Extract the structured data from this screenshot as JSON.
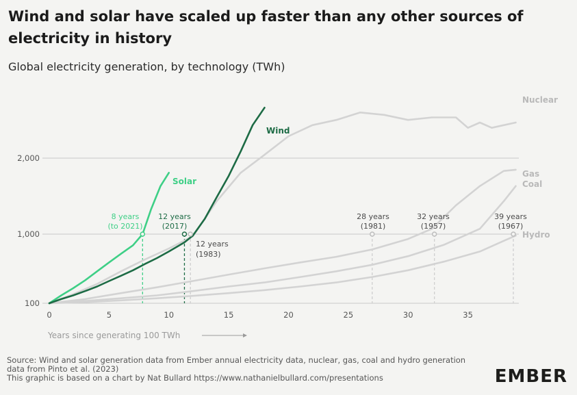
{
  "header": {
    "title": "Wind and solar have scaled up faster than any other sources of electricity in history",
    "subtitle": "Global electricity generation, by technology (TWh)"
  },
  "footer": {
    "source_line1": "Source: Wind and solar generation data from Ember annual electricity data, nuclear, gas, coal and hydro generation data from Pinto et al. (2023)",
    "source_line2": "This graphic is based on a chart by Nat Bullard https://www.nathanielbullard.com/presentations",
    "logo": "EMBER"
  },
  "colors": {
    "solar": "#3ecf86",
    "wind": "#1d6b45",
    "other": "#d3d3d3",
    "grid": "#c8c8c8",
    "axis_text": "#555555"
  },
  "chart_data": {
    "type": "line",
    "title": "Wind and solar have scaled up faster than any other sources of electricity in history",
    "subtitle": "Global electricity generation, by technology (TWh)",
    "xlabel": "Years since generating 100 TWh",
    "ylabel": "",
    "y_scale": "log",
    "xlim": [
      0,
      40
    ],
    "ylim": [
      100,
      3500
    ],
    "x_ticks": [
      0,
      5,
      10,
      15,
      20,
      25,
      30,
      35
    ],
    "y_ticks": [
      {
        "value": 100,
        "label": "100"
      },
      {
        "value": 1000,
        "label": "1,000"
      },
      {
        "value": 2000,
        "label": "2,000"
      }
    ],
    "grid": true,
    "series": [
      {
        "name": "Nuclear",
        "color_key": "other",
        "x": [
          0,
          2,
          4,
          6,
          8,
          10,
          12,
          14,
          16,
          18,
          20,
          22,
          24,
          26,
          28,
          30,
          32,
          34,
          35,
          36,
          37,
          38,
          39
        ],
        "y": [
          100,
          135,
          190,
          290,
          430,
          620,
          930,
          1350,
          1750,
          2050,
          2350,
          2550,
          2650,
          2800,
          2750,
          2650,
          2700,
          2700,
          2500,
          2600,
          2500,
          2550,
          2600
        ]
      },
      {
        "name": "Gas",
        "color_key": "other",
        "x": [
          0,
          3,
          6,
          9,
          12,
          15,
          18,
          21,
          24,
          27,
          30,
          32,
          34,
          36,
          38,
          39
        ],
        "y": [
          100,
          115,
          140,
          170,
          210,
          260,
          320,
          390,
          470,
          600,
          850,
          1050,
          1300,
          1550,
          1780,
          1800
        ]
      },
      {
        "name": "Coal",
        "color_key": "other",
        "x": [
          0,
          3,
          6,
          9,
          12,
          15,
          18,
          21,
          24,
          27,
          30,
          33,
          36,
          38,
          39
        ],
        "y": [
          100,
          108,
          118,
          130,
          150,
          175,
          200,
          240,
          290,
          360,
          480,
          700,
          1050,
          1350,
          1550
        ]
      },
      {
        "name": "Hydro",
        "color_key": "other",
        "x": [
          0,
          3,
          6,
          9,
          12,
          15,
          18,
          21,
          24,
          27,
          30,
          33,
          36,
          38,
          39
        ],
        "y": [
          100,
          104,
          110,
          118,
          128,
          140,
          155,
          175,
          200,
          240,
          300,
          400,
          560,
          800,
          950
        ]
      },
      {
        "name": "Solar",
        "color_key": "solar",
        "x": [
          0,
          1,
          2,
          3,
          4,
          5,
          6,
          7,
          7.8,
          8.5,
          9.3,
          10
        ],
        "y": [
          100,
          130,
          165,
          215,
          290,
          390,
          520,
          690,
          1000,
          1250,
          1550,
          1750
        ]
      },
      {
        "name": "Wind",
        "color_key": "wind",
        "x": [
          0,
          1,
          2,
          3,
          4,
          5,
          6,
          7,
          8,
          9,
          10,
          11.3,
          12,
          13,
          14,
          15,
          16,
          17,
          18
        ],
        "y": [
          100,
          115,
          130,
          150,
          175,
          210,
          250,
          300,
          370,
          450,
          560,
          760,
          950,
          1150,
          1400,
          1700,
          2100,
          2550,
          2900
        ]
      }
    ],
    "annotations": [
      {
        "series": "Solar",
        "years": 7.8,
        "text1": "8 years",
        "text2": "(to 2021)",
        "color_key": "solar"
      },
      {
        "series": "Wind",
        "years": 11.3,
        "text1": "12 years",
        "text2": "(2017)",
        "color_key": "wind"
      },
      {
        "series": "Nuclear",
        "years": 11.8,
        "text1": "12 years",
        "text2": "(1983)",
        "color_key": "axis_text"
      },
      {
        "series": "Gas",
        "years": 27,
        "text1": "28 years",
        "text2": "(1981)",
        "color_key": "axis_text"
      },
      {
        "series": "Coal",
        "years": 32.2,
        "text1": "32 years",
        "text2": "(1957)",
        "color_key": "axis_text"
      },
      {
        "series": "Hydro",
        "years": 38.8,
        "text1": "39 years",
        "text2": "(1967)",
        "color_key": "axis_text"
      }
    ]
  }
}
